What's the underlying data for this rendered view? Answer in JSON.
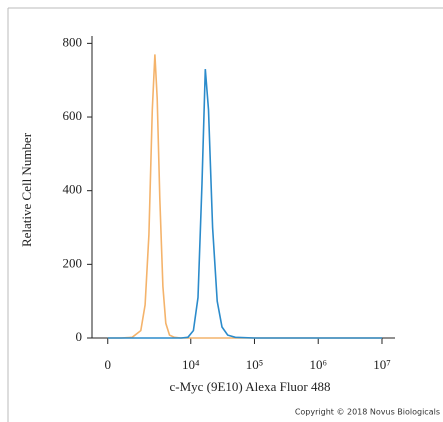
{
  "chart_data": {
    "type": "line",
    "ylabel": "Relative Cell Number",
    "xlabel": "c-Myc (9E10) Alexa Fluor 488",
    "annotation": "Copyright © 2018 Novus Biologicals",
    "xscale": "biexponential",
    "x": [
      0,
      500,
      1000,
      1500,
      1800,
      2100,
      2400,
      2650,
      2900,
      3200,
      3600,
      4000,
      4600,
      5500,
      7000,
      9000,
      11000,
      13000,
      15000,
      16900,
      19000,
      22000,
      26000,
      31000,
      38000,
      50000,
      100000,
      1000000,
      10000000
    ],
    "series": [
      {
        "color": "#f4b36b",
        "values": [
          0,
          0,
          2,
          20,
          90,
          280,
          620,
          770,
          650,
          380,
          140,
          40,
          8,
          2,
          0,
          0,
          0,
          0,
          0,
          0,
          0,
          0,
          0,
          0,
          0,
          0,
          0,
          0,
          0
        ]
      },
      {
        "color": "#2b8bcb",
        "values": [
          0,
          0,
          0,
          0,
          0,
          0,
          0,
          0,
          0,
          0,
          0,
          0,
          0,
          0,
          0,
          2,
          20,
          110,
          420,
          730,
          620,
          300,
          100,
          30,
          8,
          2,
          0,
          0,
          0
        ]
      }
    ],
    "xlim": [
      -600,
      16000000
    ],
    "xticks": [
      0,
      {
        "value": 10000,
        "label": "10⁴"
      },
      {
        "value": 100000,
        "label": "10⁵"
      },
      {
        "value": 1000000,
        "label": "10⁶"
      },
      {
        "value": 10000000,
        "label": "10⁷"
      }
    ],
    "ylim": [
      0,
      820
    ],
    "yticks": [
      0,
      200,
      400,
      600,
      800
    ]
  }
}
